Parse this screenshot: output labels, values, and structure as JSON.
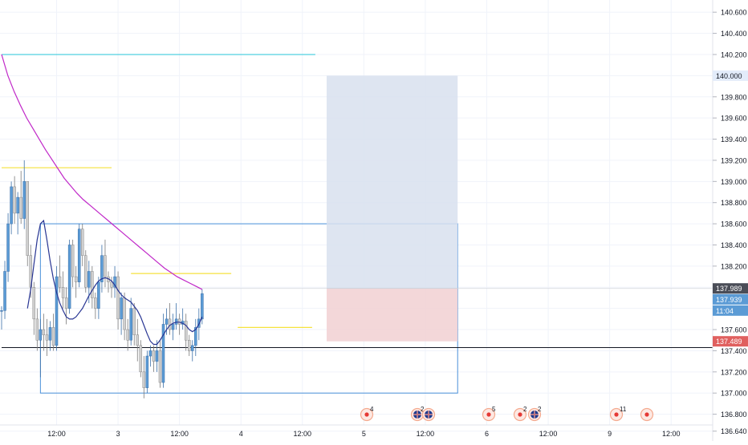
{
  "chart_data": {
    "type": "candlestick",
    "price_axis": {
      "min": 136.6,
      "max": 140.7,
      "ticks": [
        "140.600",
        "140.400",
        "140.200",
        "140.000",
        "139.800",
        "139.600",
        "139.400",
        "139.200",
        "139.000",
        "138.800",
        "138.600",
        "138.400",
        "138.200",
        "138.000",
        "137.800",
        "137.600",
        "137.400",
        "137.200",
        "137.000",
        "136.800",
        "136.640"
      ]
    },
    "time_axis": {
      "labels": [
        {
          "text": "12:00",
          "bar": 17
        },
        {
          "text": "3",
          "bar": 36
        },
        {
          "text": "12:00",
          "bar": 55
        },
        {
          "text": "4",
          "bar": 74
        },
        {
          "text": "12:00",
          "bar": 93
        },
        {
          "text": "5",
          "bar": 112
        },
        {
          "text": "12:00",
          "bar": 131
        },
        {
          "text": "6",
          "bar": 150
        },
        {
          "text": "12:00",
          "bar": 169
        },
        {
          "text": "9",
          "bar": 188
        },
        {
          "text": "12:00",
          "bar": 207
        }
      ]
    },
    "candles": [
      [
        137.78,
        137.82,
        137.6,
        137.78
      ],
      [
        137.78,
        138.25,
        137.7,
        138.15
      ],
      [
        138.15,
        138.7,
        138.05,
        138.6
      ],
      [
        138.6,
        139.0,
        138.5,
        138.95
      ],
      [
        138.95,
        139.05,
        138.6,
        138.7
      ],
      [
        138.7,
        138.9,
        138.5,
        138.85
      ],
      [
        138.85,
        139.1,
        138.6,
        138.65
      ],
      [
        138.65,
        139.2,
        138.55,
        139.0
      ],
      [
        139.0,
        139.0,
        138.2,
        138.3
      ],
      [
        138.3,
        138.4,
        137.9,
        138.0
      ],
      [
        138.0,
        138.05,
        137.55,
        137.7
      ],
      [
        137.7,
        137.8,
        137.4,
        137.5
      ],
      [
        137.5,
        137.7,
        137.15,
        137.6
      ],
      [
        137.6,
        137.75,
        137.4,
        137.55
      ],
      [
        137.55,
        137.7,
        137.35,
        137.5
      ],
      [
        137.5,
        137.68,
        137.4,
        137.62
      ],
      [
        137.62,
        137.75,
        137.4,
        137.45
      ],
      [
        137.45,
        138.2,
        137.4,
        138.1
      ],
      [
        138.1,
        138.3,
        137.95,
        138.0
      ],
      [
        138.0,
        138.15,
        137.8,
        137.9
      ],
      [
        137.9,
        138.0,
        137.65,
        137.8
      ],
      [
        137.8,
        138.45,
        137.75,
        138.4
      ],
      [
        138.4,
        138.45,
        138.0,
        138.1
      ],
      [
        138.1,
        138.2,
        137.9,
        138.05
      ],
      [
        138.05,
        138.6,
        138.0,
        138.55
      ],
      [
        138.55,
        138.6,
        138.2,
        138.3
      ],
      [
        138.3,
        138.35,
        137.95,
        138.0
      ],
      [
        138.0,
        138.25,
        137.85,
        138.15
      ],
      [
        138.15,
        138.2,
        137.8,
        137.9
      ],
      [
        137.9,
        137.95,
        137.7,
        137.8
      ],
      [
        137.8,
        138.1,
        137.7,
        138.05
      ],
      [
        138.05,
        138.4,
        137.95,
        138.3
      ],
      [
        138.3,
        138.45,
        138.0,
        138.1
      ],
      [
        138.1,
        138.15,
        137.95,
        138.05
      ],
      [
        138.05,
        138.1,
        137.9,
        138.0
      ],
      [
        138.0,
        138.2,
        137.9,
        138.1
      ],
      [
        138.1,
        138.15,
        137.6,
        137.7
      ],
      [
        137.7,
        137.95,
        137.55,
        137.9
      ],
      [
        137.9,
        137.95,
        137.5,
        137.6
      ],
      [
        137.6,
        137.7,
        137.4,
        137.5
      ],
      [
        137.5,
        137.9,
        137.45,
        137.8
      ],
      [
        137.8,
        137.85,
        137.45,
        137.55
      ],
      [
        137.55,
        137.7,
        137.3,
        137.45
      ],
      [
        137.45,
        137.5,
        137.15,
        137.2
      ],
      [
        137.2,
        137.35,
        136.95,
        137.05
      ],
      [
        137.05,
        137.4,
        137.0,
        137.35
      ],
      [
        137.35,
        137.45,
        137.25,
        137.4
      ],
      [
        137.4,
        137.45,
        137.2,
        137.3
      ],
      [
        137.3,
        137.5,
        137.2,
        137.4
      ],
      [
        137.4,
        137.5,
        137.05,
        137.1
      ],
      [
        137.1,
        137.75,
        137.05,
        137.65
      ],
      [
        137.65,
        137.8,
        137.55,
        137.7
      ],
      [
        137.7,
        137.85,
        137.55,
        137.6
      ],
      [
        137.6,
        137.75,
        137.5,
        137.65
      ],
      [
        137.65,
        137.85,
        137.6,
        137.7
      ],
      [
        137.7,
        137.75,
        137.55,
        137.65
      ],
      [
        137.65,
        137.8,
        137.6,
        137.68
      ],
      [
        137.68,
        137.75,
        137.4,
        137.5
      ],
      [
        137.5,
        137.55,
        137.35,
        137.4
      ],
      [
        137.4,
        137.5,
        137.3,
        137.45
      ],
      [
        137.45,
        137.7,
        137.35,
        137.62
      ],
      [
        137.62,
        137.8,
        137.5,
        137.7
      ],
      [
        137.7,
        137.98,
        137.65,
        137.94
      ]
    ],
    "sma_fast": [
      137.8,
      137.98,
      138.22,
      138.45,
      138.6,
      138.63,
      138.45,
      138.25,
      138.08,
      137.95,
      137.85,
      137.78,
      137.72,
      137.7,
      137.7,
      137.72,
      137.76,
      137.8,
      137.86,
      137.92,
      137.97,
      138.02,
      138.06,
      138.08,
      138.09,
      138.08,
      138.06,
      138.02,
      137.97,
      137.93,
      137.9,
      137.88,
      137.86,
      137.82,
      137.78,
      137.72,
      137.64,
      137.56,
      137.49,
      137.46,
      137.46,
      137.5,
      137.55,
      137.6,
      137.64,
      137.66,
      137.67,
      137.67,
      137.66,
      137.64,
      137.6,
      137.58,
      137.6,
      137.65,
      137.72
    ],
    "sma_slow": [
      140.2,
      140.0,
      139.85,
      139.72,
      139.6,
      139.5,
      139.4,
      139.3,
      139.21,
      139.12,
      139.03,
      138.96,
      138.89,
      138.83,
      138.78,
      138.73,
      138.68,
      138.63,
      138.58,
      138.53,
      138.48,
      138.43,
      138.38,
      138.33,
      138.28,
      138.23,
      138.18,
      138.14,
      138.1,
      138.07,
      138.04,
      138.01,
      137.98
    ],
    "horizontal_lines": [
      {
        "price": 140.2,
        "color": "#26c6da"
      },
      {
        "price": 139.13,
        "color": "#f5e23d"
      },
      {
        "price": 138.13,
        "color": "#f5e23d"
      },
      {
        "price": 137.62,
        "color": "#f5e23d"
      },
      {
        "price": 137.43,
        "color": "#131722"
      },
      {
        "price": 137.989,
        "color": "#d1d4dc"
      }
    ],
    "range_box": {
      "top": 138.6,
      "bottom": 137.0,
      "color": "#4a90d9"
    },
    "long_position": {
      "target": 140.0,
      "entry": 137.989,
      "stop": 137.489
    },
    "price_labels": [
      {
        "text": "140.000",
        "style": "plain-highlight"
      },
      {
        "text": "137.989",
        "style": "dark"
      },
      {
        "text": "137.939",
        "style": "blue"
      },
      {
        "text": "11:04",
        "style": "blue"
      },
      {
        "text": "137.489",
        "style": "red"
      }
    ],
    "events": [
      {
        "kind": "dot",
        "count": "4"
      },
      {
        "kind": "flag",
        "count": "2"
      },
      {
        "kind": "flag",
        "count": ""
      },
      {
        "kind": "dot",
        "count": "5"
      },
      {
        "kind": "dot",
        "count": "2"
      },
      {
        "kind": "flag",
        "count": "2"
      },
      {
        "kind": "dot",
        "count": "11"
      },
      {
        "kind": "dot",
        "count": ""
      }
    ],
    "colors": {
      "up": "#5b9bd5",
      "down": "#d0d0d0",
      "sma_fast": "#283593",
      "sma_slow": "#c028c8",
      "grid": "#f0f3fa"
    }
  }
}
